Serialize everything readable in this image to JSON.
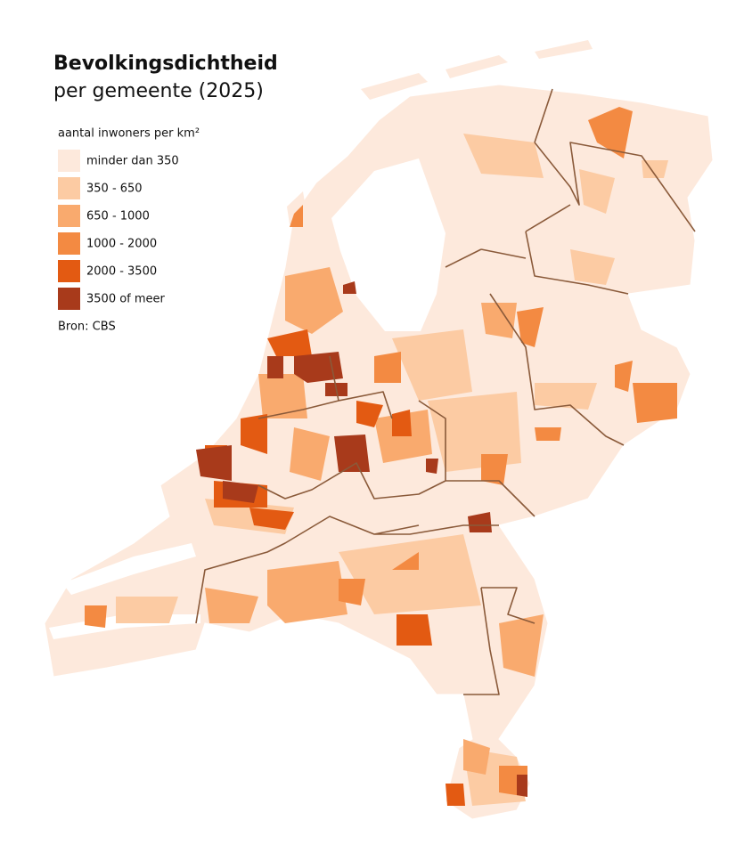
{
  "title": "Bevolkingsdichtheid",
  "subtitle": "per gemeente (2025)",
  "legend": {
    "title": "aantal inwoners per km²",
    "items": [
      {
        "label": "minder dan 350",
        "color": "#fde9dc"
      },
      {
        "label": "350 - 650",
        "color": "#fccba3"
      },
      {
        "label": "650 - 1000",
        "color": "#f9aa6e"
      },
      {
        "label": "1000 - 2000",
        "color": "#f38a42"
      },
      {
        "label": "2000 - 3500",
        "color": "#e35a12"
      },
      {
        "label": "3500 of meer",
        "color": "#a83a1b"
      }
    ]
  },
  "source": "Bron: CBS"
}
